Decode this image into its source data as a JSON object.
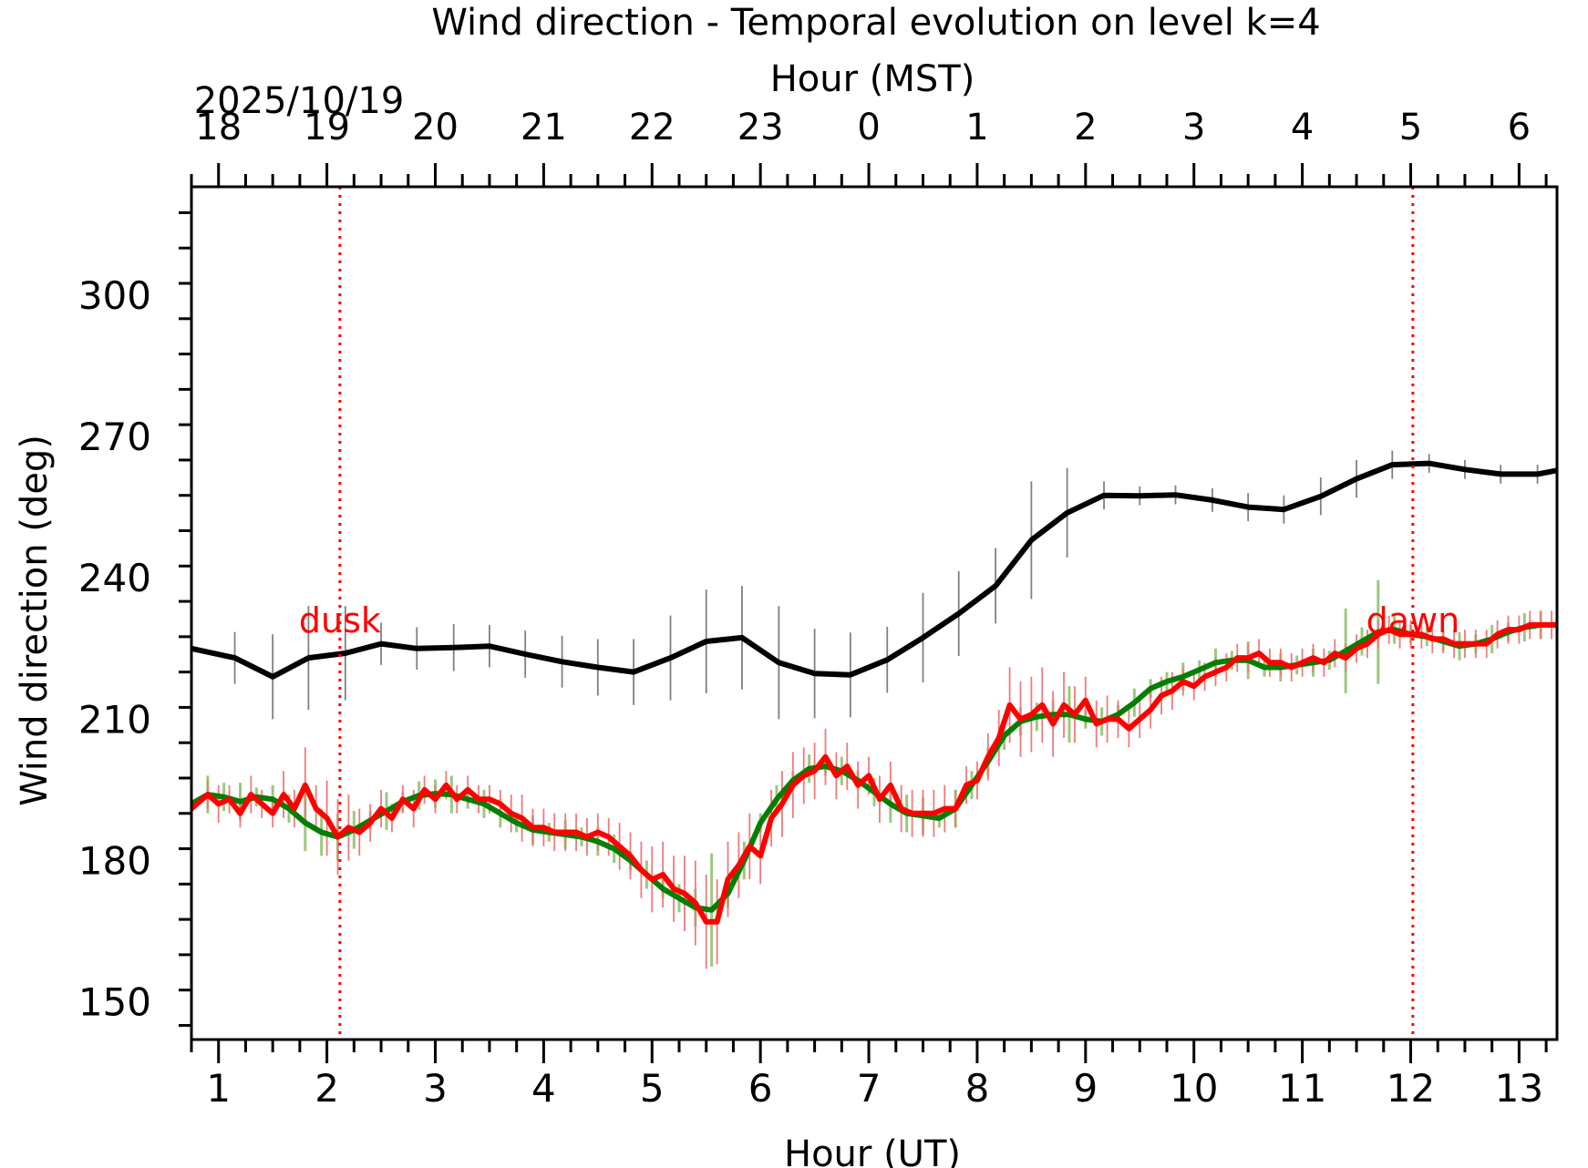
{
  "chart_data": {
    "type": "line",
    "title": "Wind direction - Temporal evolution on level k=4",
    "xlabel": "Hour (UT)",
    "ylabel": "Wind direction (deg)",
    "top_xlabel": "Hour (MST)",
    "date_label": "2025/10/19",
    "xlim": [
      0.75,
      13.35
    ],
    "ylim": [
      142,
      323
    ],
    "x_ticks": [
      1,
      2,
      3,
      4,
      5,
      6,
      7,
      8,
      9,
      10,
      11,
      12,
      13
    ],
    "x_tick_labels": [
      "1",
      "2",
      "3",
      "4",
      "5",
      "6",
      "7",
      "8",
      "9",
      "10",
      "11",
      "12",
      "13"
    ],
    "y_ticks": [
      150,
      180,
      210,
      240,
      270,
      300
    ],
    "y_tick_labels": [
      "150",
      "180",
      "210",
      "240",
      "270",
      "300"
    ],
    "top_ticks_ut": [
      1,
      2,
      3,
      4,
      5,
      6,
      7,
      8,
      9,
      10,
      11,
      12,
      13
    ],
    "top_tick_labels": [
      "18",
      "19",
      "20",
      "21",
      "22",
      "23",
      "0",
      "1",
      "2",
      "3",
      "4",
      "5",
      "6"
    ],
    "grid": false,
    "annotations": [
      {
        "text": "dusk",
        "x": 2.12,
        "color": "#ff0000"
      },
      {
        "text": "dawn",
        "x": 12.02,
        "color": "#ff0000"
      }
    ],
    "series": [
      {
        "color": "#000000",
        "width": 6,
        "err_color": "#808080",
        "x": [
          0.75,
          1.15,
          1.5,
          1.83,
          2.17,
          2.5,
          2.83,
          3.17,
          3.5,
          3.83,
          4.17,
          4.5,
          4.83,
          5.17,
          5.5,
          5.83,
          6.17,
          6.5,
          6.83,
          7.17,
          7.5,
          7.83,
          8.17,
          8.5,
          8.83,
          9.17,
          9.5,
          9.83,
          10.17,
          10.5,
          10.83,
          11.17,
          11.5,
          11.83,
          12.17,
          12.5,
          12.83,
          13.17,
          13.35
        ],
        "y": [
          225,
          223,
          219,
          223,
          224,
          226,
          225,
          225.2,
          225.5,
          223.8,
          222.2,
          221,
          220,
          223,
          226.5,
          227.3,
          222,
          219.7,
          219.4,
          222.6,
          227.3,
          232.4,
          238.3,
          248,
          253.8,
          257.5,
          257.4,
          257.6,
          256.5,
          255,
          254.5,
          257.3,
          261,
          264,
          264.3,
          263,
          262,
          262,
          262.8
        ],
        "err": [
          4.5,
          5.5,
          9,
          11,
          10,
          4.5,
          4.5,
          5,
          4.5,
          5,
          5.5,
          6,
          7,
          9,
          11,
          11,
          12,
          9.5,
          9,
          7,
          9.5,
          9,
          8,
          12.5,
          9.5,
          3,
          2,
          2,
          2.5,
          3,
          3,
          4,
          4,
          3,
          2,
          2,
          2,
          2,
          2.5
        ]
      },
      {
        "color": "#007f00",
        "width": 6,
        "err_color": "#9cc87e",
        "x": [
          0.75,
          0.9,
          1.05,
          1.2,
          1.35,
          1.5,
          1.65,
          1.8,
          1.95,
          2.1,
          2.25,
          2.4,
          2.55,
          2.7,
          2.85,
          3.0,
          3.15,
          3.3,
          3.45,
          3.6,
          3.75,
          3.9,
          4.05,
          4.2,
          4.35,
          4.5,
          4.65,
          4.8,
          4.95,
          5.1,
          5.25,
          5.4,
          5.55,
          5.7,
          5.85,
          6.0,
          6.15,
          6.3,
          6.45,
          6.6,
          6.75,
          6.9,
          7.05,
          7.2,
          7.35,
          7.5,
          7.65,
          7.8,
          7.95,
          8.1,
          8.25,
          8.4,
          8.55,
          8.7,
          8.85,
          9.0,
          9.15,
          9.3,
          9.45,
          9.6,
          9.75,
          9.9,
          10.05,
          10.2,
          10.35,
          10.5,
          10.65,
          10.8,
          10.95,
          11.1,
          11.25,
          11.4,
          11.55,
          11.7,
          11.85,
          12.0,
          12.15,
          12.3,
          12.45,
          12.6,
          12.75,
          12.9,
          13.05,
          13.2,
          13.35
        ],
        "y": [
          192,
          194,
          193.5,
          192.5,
          193.5,
          193,
          191,
          188,
          186,
          185,
          186.5,
          188.5,
          190.5,
          192.5,
          193.8,
          194.2,
          194,
          193,
          192,
          190,
          188,
          186.5,
          186,
          185.5,
          185,
          184,
          182.5,
          180,
          177,
          174,
          172,
          170,
          169.5,
          173,
          180,
          188,
          193,
          197,
          199.5,
          200,
          199,
          197,
          194.5,
          192,
          190,
          189.5,
          189,
          191,
          196,
          201,
          206.5,
          209.5,
          210.5,
          211,
          211,
          210,
          209.5,
          211,
          213.5,
          216.5,
          218,
          219,
          220.5,
          222,
          222.5,
          222.5,
          221,
          221,
          221.5,
          222,
          222.5,
          224.5,
          226.5,
          228.5,
          229,
          228,
          227.5,
          226.5,
          225.5,
          226,
          227,
          228.5,
          229.5,
          230,
          230
        ],
        "err": [
          3,
          4,
          3,
          4,
          2,
          3,
          3,
          6,
          5,
          5,
          4,
          2,
          4,
          2,
          3,
          3,
          4,
          2,
          3,
          3,
          2,
          3,
          2,
          3,
          2,
          3,
          3,
          2,
          3,
          2,
          3,
          4,
          12,
          3,
          4,
          2,
          3,
          2,
          3,
          2,
          3,
          2,
          3,
          4,
          4,
          4,
          2,
          4,
          3,
          3,
          3,
          3,
          3,
          3,
          6,
          2,
          3,
          2,
          3,
          2,
          2,
          3,
          2,
          3,
          2,
          4,
          2,
          3,
          2,
          3,
          2,
          9,
          3,
          11,
          3,
          2,
          2,
          2,
          3,
          2,
          3,
          2,
          3,
          3,
          3
        ]
      },
      {
        "color": "#ff0000",
        "width": 6,
        "err_color": "#f07a7a",
        "x": [
          0.75,
          0.9,
          1.0,
          1.1,
          1.2,
          1.3,
          1.4,
          1.5,
          1.6,
          1.7,
          1.8,
          1.9,
          2.0,
          2.1,
          2.2,
          2.3,
          2.4,
          2.5,
          2.6,
          2.7,
          2.8,
          2.9,
          3.0,
          3.1,
          3.2,
          3.3,
          3.4,
          3.5,
          3.6,
          3.7,
          3.8,
          3.9,
          4.0,
          4.1,
          4.2,
          4.3,
          4.4,
          4.5,
          4.6,
          4.7,
          4.8,
          4.9,
          5.0,
          5.1,
          5.2,
          5.3,
          5.4,
          5.5,
          5.6,
          5.7,
          5.8,
          5.9,
          6.0,
          6.1,
          6.2,
          6.3,
          6.4,
          6.5,
          6.6,
          6.7,
          6.8,
          6.9,
          7.0,
          7.1,
          7.2,
          7.3,
          7.4,
          7.5,
          7.6,
          7.7,
          7.8,
          7.9,
          8.0,
          8.1,
          8.2,
          8.3,
          8.4,
          8.5,
          8.6,
          8.7,
          8.8,
          8.9,
          9.0,
          9.1,
          9.2,
          9.3,
          9.4,
          9.5,
          9.6,
          9.7,
          9.8,
          9.9,
          10.0,
          10.1,
          10.2,
          10.3,
          10.4,
          10.5,
          10.6,
          10.7,
          10.8,
          10.9,
          11.0,
          11.1,
          11.2,
          11.3,
          11.4,
          11.5,
          11.6,
          11.7,
          11.8,
          11.9,
          12.0,
          12.1,
          12.2,
          12.3,
          12.4,
          12.5,
          12.6,
          12.7,
          12.8,
          12.9,
          13.0,
          13.1,
          13.2,
          13.3,
          13.35
        ],
        "y": [
          191,
          194,
          192,
          193,
          190,
          194,
          192,
          190,
          194,
          191,
          196,
          191,
          189,
          185,
          187,
          186,
          188,
          191,
          189,
          193,
          191,
          195,
          193,
          196,
          193,
          195,
          193,
          193,
          192,
          190,
          189,
          187,
          187,
          186,
          186,
          186,
          185,
          186,
          185,
          183,
          181,
          178,
          176,
          177,
          174,
          173,
          171,
          167,
          167,
          176,
          179,
          183,
          181,
          189,
          192,
          196,
          198,
          199,
          202,
          198,
          200,
          196,
          198,
          193,
          196,
          191,
          190,
          190,
          190,
          191,
          191,
          196,
          197,
          202,
          206,
          213,
          210,
          211,
          213,
          209,
          213,
          211,
          214,
          209,
          210,
          210,
          208,
          210,
          212,
          215,
          216,
          218,
          217,
          219,
          220,
          221,
          223,
          223,
          224,
          222,
          222,
          221,
          222,
          223,
          222,
          224,
          223,
          225,
          226,
          228,
          229,
          228,
          228,
          228,
          227,
          227,
          226,
          226,
          226,
          226,
          228,
          229,
          229,
          230,
          230,
          230,
          230
        ],
        "err": [
          2,
          3,
          4,
          3,
          3,
          4,
          3,
          3,
          5,
          4,
          8,
          5,
          8,
          8,
          7,
          5,
          4,
          4,
          3,
          3,
          4,
          3,
          3,
          3,
          3,
          3,
          3,
          3,
          3,
          4,
          5,
          4,
          4,
          4,
          4,
          4,
          4,
          4,
          4,
          5,
          5,
          6,
          7,
          7,
          7,
          8,
          9,
          10,
          9,
          8,
          7,
          7,
          6,
          6,
          7,
          7,
          6,
          6,
          6,
          5,
          5,
          5,
          4,
          5,
          5,
          5,
          5,
          5,
          5,
          5,
          4,
          4,
          4,
          5,
          6,
          8,
          8,
          8,
          8,
          7,
          7,
          6,
          5,
          5,
          5,
          4,
          4,
          4,
          4,
          4,
          4,
          3,
          3,
          3,
          3,
          3,
          3,
          3,
          3,
          3,
          3,
          3,
          3,
          3,
          3,
          3,
          3,
          3,
          3,
          3,
          3,
          3,
          3,
          3,
          3,
          3,
          3,
          3,
          3,
          3,
          3,
          3,
          3,
          3,
          3,
          3,
          3
        ]
      }
    ]
  }
}
